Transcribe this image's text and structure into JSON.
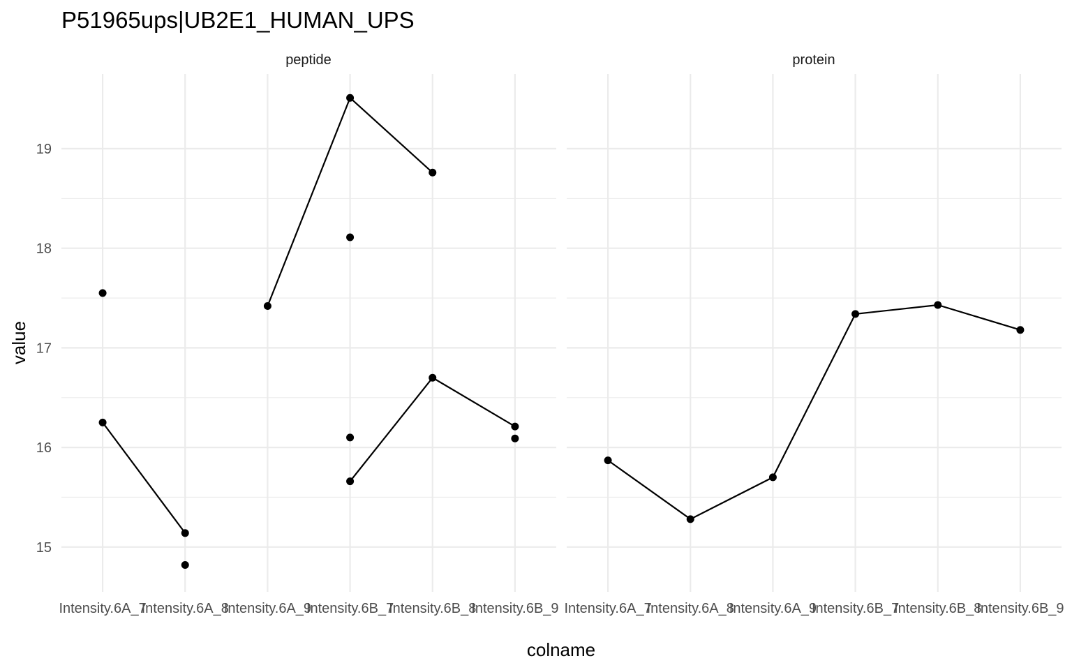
{
  "chart_data": {
    "type": "line",
    "title": "P51965ups|UB2E1_HUMAN_UPS",
    "xlabel": "colname",
    "ylabel": "value",
    "categories": [
      "Intensity.6A_7",
      "Intensity.6A_8",
      "Intensity.6A_9",
      "Intensity.6B_7",
      "Intensity.6B_8",
      "Intensity.6B_9"
    ],
    "ylim": [
      14.55,
      19.75
    ],
    "yticks": [
      15,
      16,
      17,
      18,
      19
    ],
    "grid": true,
    "legend": "none",
    "panels": [
      {
        "label": "peptide",
        "lines": [
          [
            [
              0,
              16.25
            ],
            [
              1,
              15.14
            ]
          ],
          [
            [
              2,
              17.42
            ],
            [
              3,
              19.51
            ],
            [
              4,
              18.76
            ]
          ],
          [
            [
              3,
              15.66
            ],
            [
              4,
              16.7
            ],
            [
              5,
              16.21
            ]
          ]
        ],
        "points": [
          [
            0,
            17.55
          ],
          [
            0,
            16.25
          ],
          [
            1,
            15.14
          ],
          [
            1,
            14.82
          ],
          [
            2,
            17.42
          ],
          [
            3,
            19.51
          ],
          [
            3,
            18.11
          ],
          [
            3,
            16.1
          ],
          [
            3,
            15.66
          ],
          [
            4,
            18.76
          ],
          [
            4,
            16.7
          ],
          [
            5,
            16.21
          ],
          [
            5,
            16.09
          ]
        ]
      },
      {
        "label": "protein",
        "lines": [
          [
            [
              0,
              15.87
            ],
            [
              1,
              15.28
            ],
            [
              2,
              15.7
            ],
            [
              3,
              17.34
            ],
            [
              4,
              17.43
            ],
            [
              5,
              17.18
            ]
          ]
        ],
        "points": [
          [
            0,
            15.87
          ],
          [
            1,
            15.28
          ],
          [
            2,
            15.7
          ],
          [
            3,
            17.34
          ],
          [
            4,
            17.43
          ],
          [
            5,
            17.18
          ]
        ]
      }
    ]
  }
}
